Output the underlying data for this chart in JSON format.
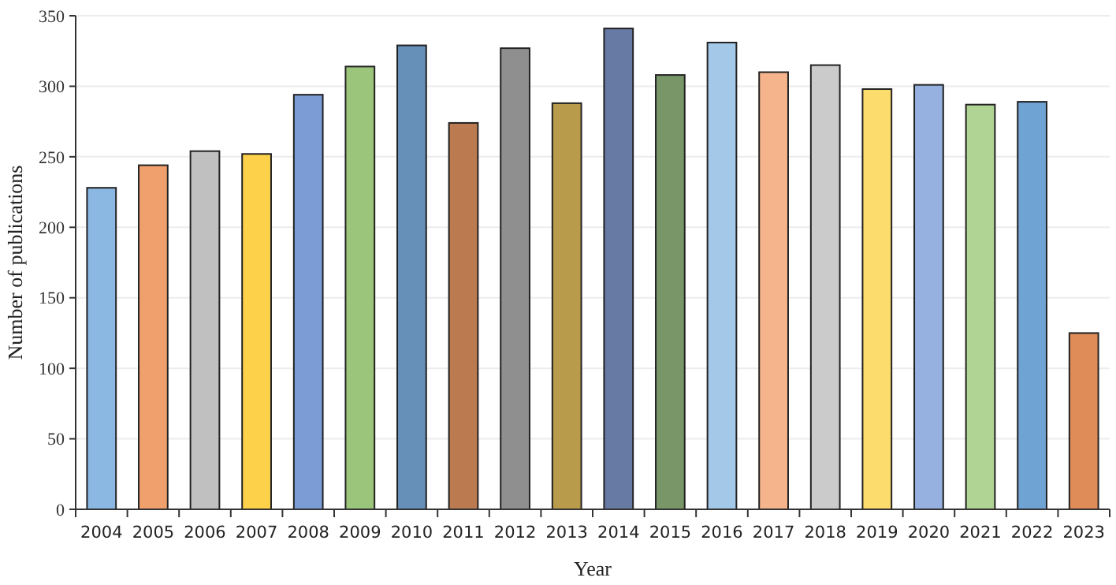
{
  "chart_data": {
    "type": "bar",
    "xlabel": "Year",
    "ylabel": "Number of publications",
    "categories": [
      "2004",
      "2005",
      "2006",
      "2007",
      "2008",
      "2009",
      "2010",
      "2011",
      "2012",
      "2013",
      "2014",
      "2015",
      "2016",
      "2017",
      "2018",
      "2019",
      "2020",
      "2021",
      "2022",
      "2023"
    ],
    "values": [
      228,
      244,
      254,
      252,
      294,
      314,
      329,
      274,
      327,
      288,
      341,
      308,
      331,
      310,
      315,
      298,
      301,
      287,
      289,
      125
    ],
    "colors": [
      "#8bb8e3",
      "#f0a06c",
      "#c0c0c0",
      "#fdd24a",
      "#7c9cd6",
      "#9bc57a",
      "#6690b8",
      "#bb7a50",
      "#8f8f8f",
      "#b89c4c",
      "#667aa3",
      "#789668",
      "#a3c8e8",
      "#f5b48c",
      "#cbcbcb",
      "#fddc6e",
      "#96b0df",
      "#b0d494",
      "#6ea3d4",
      "#df8c58"
    ],
    "ylim": [
      0,
      350
    ],
    "yticks": [
      0,
      50,
      100,
      150,
      200,
      250,
      300,
      350
    ],
    "grid": "y"
  }
}
